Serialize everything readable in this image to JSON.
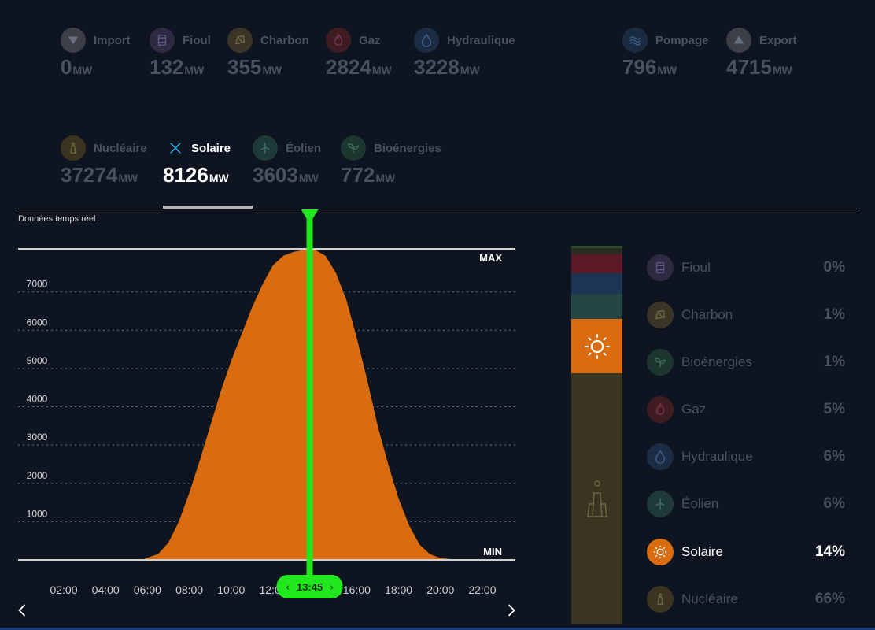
{
  "tiles_row1": [
    {
      "id": "import",
      "label": "Import",
      "value": "0",
      "unit": "MW",
      "icon": "triangle-down-icon",
      "color": "#3a3f48"
    },
    {
      "id": "fioul",
      "label": "Fioul",
      "value": "132",
      "unit": "MW",
      "icon": "barrel-icon",
      "color": "#2e2a42"
    },
    {
      "id": "charbon",
      "label": "Charbon",
      "value": "355",
      "unit": "MW",
      "icon": "coal-icon",
      "color": "#3a3526"
    },
    {
      "id": "gaz",
      "label": "Gaz",
      "value": "2824",
      "unit": "MW",
      "icon": "flame-icon",
      "color": "#3e1c22"
    },
    {
      "id": "hydraulique",
      "label": "Hydraulique",
      "value": "3228",
      "unit": "MW",
      "icon": "drop-icon",
      "color": "#1c2c44"
    },
    {
      "id": "pompage",
      "label": "Pompage",
      "value": "796",
      "unit": "MW",
      "icon": "waves-icon",
      "color": "#1a2a40"
    },
    {
      "id": "export",
      "label": "Export",
      "value": "4715",
      "unit": "MW",
      "icon": "triangle-up-icon",
      "color": "#3a3f48"
    }
  ],
  "tiles_row2": [
    {
      "id": "nucleaire",
      "label": "Nucléaire",
      "value": "37274",
      "unit": "MW",
      "icon": "nuclear-plant-icon",
      "color": "#3a3420"
    },
    {
      "id": "solaire",
      "label": "Solaire",
      "value": "8126",
      "unit": "MW",
      "icon": "close-icon",
      "color": "transparent",
      "active": true
    },
    {
      "id": "eolien",
      "label": "Éolien",
      "value": "3603",
      "unit": "MW",
      "icon": "wind-turbine-icon",
      "color": "#1e3a38"
    },
    {
      "id": "bioenergies",
      "label": "Bioénergies",
      "value": "772",
      "unit": "MW",
      "icon": "leaf-icon",
      "color": "#1c3630"
    }
  ],
  "realtime_label": "Données temps réel",
  "cursor_time": "13:45",
  "chart_data": {
    "type": "area",
    "series": [
      {
        "x": [
          "05:45",
          "06:00",
          "06:30",
          "07:00",
          "07:30",
          "08:00",
          "08:30",
          "09:00",
          "09:30",
          "10:00",
          "10:30",
          "11:00",
          "11:30",
          "12:00",
          "12:30",
          "13:00",
          "13:30",
          "13:45",
          "14:00",
          "14:30",
          "15:00",
          "15:30",
          "16:00",
          "16:30",
          "17:00",
          "17:30",
          "18:00",
          "18:30",
          "19:00",
          "19:30",
          "20:00",
          "20:30",
          "20:45"
        ],
        "values": [
          0,
          60,
          150,
          450,
          1000,
          1750,
          2600,
          3500,
          4400,
          5200,
          5900,
          6600,
          7200,
          7700,
          7950,
          8050,
          8100,
          8126,
          8100,
          7950,
          7500,
          6800,
          5800,
          4700,
          3500,
          2500,
          1600,
          900,
          400,
          150,
          50,
          20,
          0
        ]
      }
    ],
    "x_ticks": [
      "02:00",
      "04:00",
      "06:00",
      "08:00",
      "10:00",
      "12:00",
      "14:00",
      "16:00",
      "18:00",
      "20:00",
      "22:00"
    ],
    "y_ticks": [
      1000,
      2000,
      3000,
      4000,
      5000,
      6000,
      7000
    ],
    "ylim": [
      0,
      8126
    ],
    "max_label": "MAX",
    "min_label": "MIN",
    "grid": "dotted-horizontal",
    "fill_color": "#d96c10",
    "cursor_color": "#22e61e"
  },
  "mix_bar": [
    {
      "id": "fioul",
      "share": 0.0,
      "color": "#2a2438"
    },
    {
      "id": "charbon",
      "share": 1,
      "color": "#2b3b26"
    },
    {
      "id": "gaz",
      "share": 5,
      "color": "#5b1a26"
    },
    {
      "id": "hydraulique",
      "share": 6,
      "color": "#1c3555"
    },
    {
      "id": "eolien",
      "share": 6,
      "color": "#234644"
    },
    {
      "id": "solaire",
      "share": 14,
      "color": "#d96c10",
      "icon": "sun-icon"
    },
    {
      "id": "nucleaire",
      "share": 66,
      "color": "#3a3520",
      "icon": "nuclear-plant-icon"
    }
  ],
  "legend": [
    {
      "id": "fioul",
      "name": "Fioul",
      "pct": "0%",
      "icon": "barrel-icon",
      "color": "#2e2a42"
    },
    {
      "id": "charbon",
      "name": "Charbon",
      "pct": "1%",
      "icon": "coal-icon",
      "color": "#3a3526"
    },
    {
      "id": "bioenergies",
      "name": "Bioénergies",
      "pct": "1%",
      "icon": "leaf-icon",
      "color": "#1c3630"
    },
    {
      "id": "gaz",
      "name": "Gaz",
      "pct": "5%",
      "icon": "flame-icon",
      "color": "#3e1c22"
    },
    {
      "id": "hydraulique",
      "name": "Hydraulique",
      "pct": "6%",
      "icon": "drop-icon",
      "color": "#1c2c44"
    },
    {
      "id": "eolien",
      "name": "Éolien",
      "pct": "6%",
      "icon": "wind-turbine-icon",
      "color": "#1e3a38"
    },
    {
      "id": "solaire",
      "name": "Solaire",
      "pct": "14%",
      "icon": "sun-icon",
      "color": "#d96c10",
      "active": true
    },
    {
      "id": "nucleaire",
      "name": "Nucléaire",
      "pct": "66%",
      "icon": "nuclear-plant-icon",
      "color": "#3a3420"
    }
  ]
}
